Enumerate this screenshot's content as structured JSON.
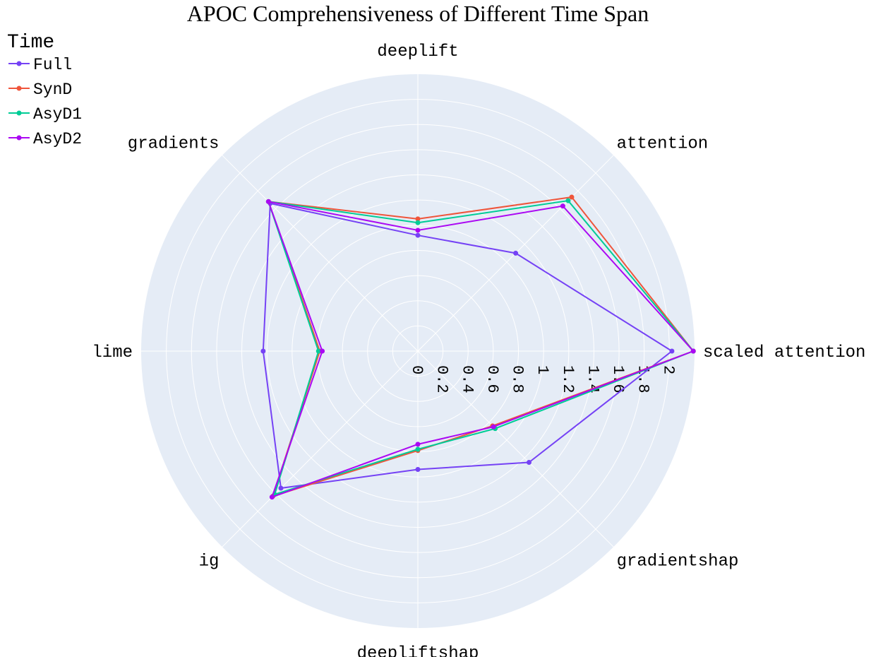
{
  "chart_data": {
    "type": "radar",
    "title": "APOC Comprehensiveness of Different Time Span",
    "legend_title": "Time",
    "legend_position": "top-left",
    "categories": [
      "scaled attention",
      "attention",
      "deeplift",
      "gradients",
      "lime",
      "ig",
      "deepliftshap",
      "gradientshap"
    ],
    "radial_range": [
      0,
      2.2
    ],
    "radial_ticks": [
      "0",
      "0.2",
      "0.4",
      "0.6",
      "0.8",
      "1",
      "1.2",
      "1.4",
      "1.6",
      "1.8",
      "2"
    ],
    "grid": true,
    "colors": {
      "background": "#e5ecf6",
      "grid": "#ffffff"
    },
    "series": [
      {
        "name": "Full",
        "color": "#7542f5",
        "values": [
          2.02,
          1.1,
          0.92,
          1.66,
          1.23,
          1.54,
          0.94,
          1.25
        ]
      },
      {
        "name": "SynD",
        "color": "#ef553b",
        "values": [
          2.19,
          1.73,
          1.05,
          1.68,
          0.78,
          1.63,
          0.79,
          0.84
        ]
      },
      {
        "name": "AsyD1",
        "color": "#00cc96",
        "values": [
          2.19,
          1.69,
          1.02,
          1.68,
          0.79,
          1.61,
          0.78,
          0.87
        ]
      },
      {
        "name": "AsyD2",
        "color": "#ab08f3",
        "values": [
          2.19,
          1.63,
          0.96,
          1.68,
          0.76,
          1.64,
          0.74,
          0.85
        ]
      }
    ]
  }
}
